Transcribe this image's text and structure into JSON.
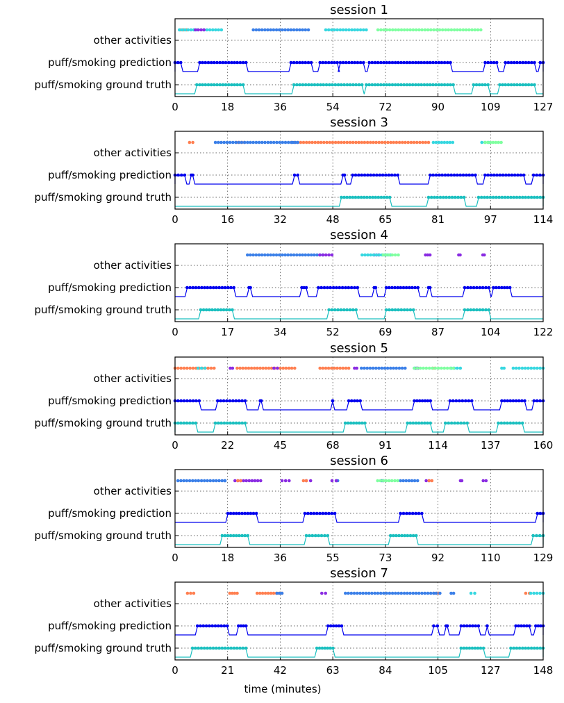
{
  "figure": {
    "xlabel": "time (minutes)",
    "colors": {
      "ground_truth": "#1abfbf",
      "prediction": "#0000ee",
      "orange": "#ff7f50",
      "blue": "#3a7fe8",
      "cyan": "#36d7e0",
      "violet": "#8a2be2",
      "mint": "#7fffa0"
    }
  },
  "chart_data": [
    {
      "type": "scatter",
      "title": "session 1",
      "xlabel": "",
      "ylabels": [
        "other activities",
        "puff/smoking prediction",
        "puff/smoking ground truth"
      ],
      "xticks": [
        "0",
        "18",
        "36",
        "54",
        "72",
        "90",
        "109",
        "127"
      ],
      "xlim": [
        0,
        127
      ],
      "grid": true,
      "series": [
        {
          "row": "ground_truth",
          "segments": [
            [
              7.5,
              23.5
            ],
            [
              41,
              64.5
            ],
            [
              66,
              96
            ],
            [
              103,
              108
            ],
            [
              112,
              124
            ]
          ]
        },
        {
          "row": "prediction",
          "segments": [
            [
              0,
              2
            ],
            [
              8.5,
              24.5
            ],
            [
              40,
              47
            ],
            [
              50,
              56
            ],
            [
              57,
              65
            ],
            [
              67,
              95
            ],
            [
              107,
              111
            ],
            [
              114,
              124
            ],
            [
              126,
              127
            ]
          ]
        },
        {
          "row": "other",
          "color": "orange",
          "segments": [
            [
              2,
              4
            ]
          ]
        },
        {
          "row": "other",
          "color": "cyan",
          "segments": [
            [
              1.5,
              7.5
            ],
            [
              10,
              16
            ],
            [
              52,
              66
            ]
          ]
        },
        {
          "row": "other",
          "color": "violet",
          "segments": [
            [
              7,
              10
            ]
          ]
        },
        {
          "row": "other",
          "color": "blue",
          "segments": [
            [
              27,
              46
            ]
          ]
        },
        {
          "row": "other",
          "color": "mint",
          "segments": [
            [
              70,
              105.5
            ]
          ]
        }
      ]
    },
    {
      "type": "scatter",
      "title": "session 3",
      "xlabel": "",
      "ylabels": [
        "other activities",
        "puff/smoking prediction",
        "puff/smoking ground truth"
      ],
      "xticks": [
        "0",
        "16",
        "32",
        "48",
        "65",
        "81",
        "97",
        "114"
      ],
      "xlim": [
        0,
        114
      ],
      "grid": true,
      "series": [
        {
          "row": "ground_truth",
          "segments": [
            [
              51.5,
              66.5
            ],
            [
              78.5,
              89.5
            ],
            [
              94,
              114
            ]
          ]
        },
        {
          "row": "prediction",
          "segments": [
            [
              0,
              3
            ],
            [
              5,
              5.5
            ],
            [
              37,
              38
            ],
            [
              52,
              52.5
            ],
            [
              55,
              69
            ],
            [
              79,
              93
            ],
            [
              96,
              108
            ],
            [
              111,
              114
            ]
          ]
        },
        {
          "row": "other",
          "color": "orange",
          "segments": [
            [
              4.5,
              5.5
            ],
            [
              19,
              21.5
            ],
            [
              36,
              37
            ],
            [
              38,
              78.5
            ]
          ]
        },
        {
          "row": "other",
          "color": "blue",
          "segments": [
            [
              12.5,
              36
            ],
            [
              36.5,
              38
            ]
          ]
        },
        {
          "row": "other",
          "color": "cyan",
          "segments": [
            [
              80,
              86
            ],
            [
              95,
              97
            ]
          ]
        },
        {
          "row": "other",
          "color": "mint",
          "segments": [
            [
              96,
              101
            ]
          ]
        }
      ]
    },
    {
      "type": "scatter",
      "title": "session 4",
      "xlabel": "",
      "ylabels": [
        "other activities",
        "puff/smoking prediction",
        "puff/smoking ground truth"
      ],
      "xticks": [
        "0",
        "17",
        "34",
        "52",
        "69",
        "87",
        "104",
        "122"
      ],
      "xlim": [
        0,
        122
      ],
      "grid": true,
      "series": [
        {
          "row": "ground_truth",
          "segments": [
            [
              8.5,
              19
            ],
            [
              51,
              60
            ],
            [
              70,
              79
            ],
            [
              96,
              104
            ]
          ]
        },
        {
          "row": "prediction",
          "segments": [
            [
              4,
              19.5
            ],
            [
              24.5,
              25
            ],
            [
              42,
              43.5
            ],
            [
              47.5,
              60.5
            ],
            [
              66,
              66.5
            ],
            [
              70,
              80.5
            ],
            [
              84,
              84.5
            ],
            [
              96,
              104
            ],
            [
              105.5,
              111
            ]
          ]
        },
        {
          "row": "other",
          "color": "blue",
          "segments": [
            [
              24,
              49
            ]
          ]
        },
        {
          "row": "other",
          "color": "violet",
          "segments": [
            [
              48,
              52
            ],
            [
              66,
              67.5
            ],
            [
              83,
              84.5
            ],
            [
              94,
              94.5
            ],
            [
              102,
              102.5
            ]
          ]
        },
        {
          "row": "other",
          "color": "cyan",
          "segments": [
            [
              62,
              71.5
            ]
          ]
        },
        {
          "row": "other",
          "color": "mint",
          "segments": [
            [
              69,
              74
            ]
          ]
        }
      ]
    },
    {
      "type": "scatter",
      "title": "session 5",
      "xlabel": "",
      "ylabels": [
        "other activities",
        "puff/smoking prediction",
        "puff/smoking ground truth"
      ],
      "xticks": [
        "0",
        "22",
        "45",
        "68",
        "91",
        "114",
        "137",
        "160"
      ],
      "xlim": [
        0,
        160
      ],
      "grid": true,
      "series": [
        {
          "row": "ground_truth",
          "segments": [
            [
              0,
              9
            ],
            [
              17.5,
              30.5
            ],
            [
              74,
              82.5
            ],
            [
              101,
              111
            ],
            [
              117.5,
              127
            ],
            [
              140.5,
              151
            ]
          ]
        },
        {
          "row": "prediction",
          "segments": [
            [
              0,
              10.5
            ],
            [
              18.5,
              30.5
            ],
            [
              37,
              37.5
            ],
            [
              68.5,
              68.5
            ],
            [
              75.5,
              80.5
            ],
            [
              104,
              111
            ],
            [
              119.5,
              129
            ],
            [
              142,
              152
            ],
            [
              156,
              160
            ]
          ]
        },
        {
          "row": "other",
          "color": "orange",
          "segments": [
            [
              0,
              17
            ],
            [
              27,
              52
            ],
            [
              63,
              75.5
            ],
            [
              112,
              113
            ]
          ]
        },
        {
          "row": "other",
          "color": "blue",
          "segments": [
            [
              81,
              100
            ]
          ]
        },
        {
          "row": "other",
          "color": "cyan",
          "segments": [
            [
              10,
              13
            ],
            [
              104,
              104.5
            ],
            [
              120,
              124
            ],
            [
              142,
              143
            ],
            [
              147,
              160
            ]
          ]
        },
        {
          "row": "other",
          "color": "violet",
          "segments": [
            [
              24,
              25
            ],
            [
              43,
              44.5
            ],
            [
              78,
              79
            ],
            [
              105,
              105.5
            ]
          ]
        },
        {
          "row": "other",
          "color": "mint",
          "segments": [
            [
              104,
              121
            ]
          ]
        }
      ]
    },
    {
      "type": "scatter",
      "title": "session 6",
      "xlabel": "",
      "ylabels": [
        "other activities",
        "puff/smoking prediction",
        "puff/smoking ground truth"
      ],
      "xticks": [
        "0",
        "18",
        "36",
        "55",
        "73",
        "92",
        "110",
        "129"
      ],
      "xlim": [
        0,
        129
      ],
      "grid": true,
      "series": [
        {
          "row": "ground_truth",
          "segments": [
            [
              16.5,
              25.5
            ],
            [
              46,
              53.5
            ],
            [
              75.5,
              84.5
            ],
            [
              125.5,
              129
            ]
          ]
        },
        {
          "row": "prediction",
          "segments": [
            [
              18.5,
              28.5
            ],
            [
              45.5,
              56
            ],
            [
              79,
              86.5
            ],
            [
              127,
              129
            ]
          ]
        },
        {
          "row": "other",
          "color": "blue",
          "segments": [
            [
              1,
              16.5
            ],
            [
              17.5,
              17.5
            ],
            [
              56.5,
              57
            ],
            [
              72.5,
              73
            ],
            [
              79,
              85
            ]
          ]
        },
        {
          "row": "other",
          "color": "violet",
          "segments": [
            [
              21,
              30
            ],
            [
              37.5,
              40
            ],
            [
              46,
              47.5
            ],
            [
              55,
              56.5
            ],
            [
              88,
              89
            ],
            [
              100,
              100.5
            ],
            [
              108,
              109
            ]
          ]
        },
        {
          "row": "other",
          "color": "orange",
          "segments": [
            [
              22,
              23
            ],
            [
              45,
              46
            ],
            [
              89,
              90
            ]
          ]
        },
        {
          "row": "other",
          "color": "mint",
          "segments": [
            [
              71,
              78
            ]
          ]
        }
      ]
    },
    {
      "type": "scatter",
      "title": "session 7",
      "xlabel": "time (minutes)",
      "ylabels": [
        "other activities",
        "puff/smoking prediction",
        "puff/smoking ground truth"
      ],
      "xticks": [
        "0",
        "21",
        "42",
        "63",
        "84",
        "105",
        "127",
        "148"
      ],
      "xlim": [
        0,
        148
      ],
      "grid": true,
      "series": [
        {
          "row": "ground_truth",
          "segments": [
            [
              7,
              28.5
            ],
            [
              57,
              63.5
            ],
            [
              115,
              124
            ],
            [
              135,
              148
            ]
          ]
        },
        {
          "row": "prediction",
          "segments": [
            [
              9,
              21
            ],
            [
              25.5,
              28.5
            ],
            [
              61.5,
              67
            ],
            [
              104,
              105.5
            ],
            [
              109,
              109.5
            ],
            [
              115,
              122
            ],
            [
              125.5,
              125.5
            ],
            [
              137,
              142.5
            ],
            [
              145,
              148
            ]
          ]
        },
        {
          "row": "other",
          "color": "orange",
          "segments": [
            [
              5,
              7.5
            ],
            [
              22,
              25
            ],
            [
              33,
              43
            ],
            [
              104,
              106
            ],
            [
              141,
              142.5
            ]
          ]
        },
        {
          "row": "other",
          "color": "violet",
          "segments": [
            [
              59,
              60.5
            ]
          ]
        },
        {
          "row": "other",
          "color": "blue",
          "segments": [
            [
              41,
              43
            ],
            [
              68.5,
              104
            ],
            [
              105,
              106.5
            ],
            [
              111,
              112
            ]
          ]
        },
        {
          "row": "other",
          "color": "cyan",
          "segments": [
            [
              119,
              120.5
            ],
            [
              143,
              148
            ]
          ]
        }
      ]
    }
  ]
}
